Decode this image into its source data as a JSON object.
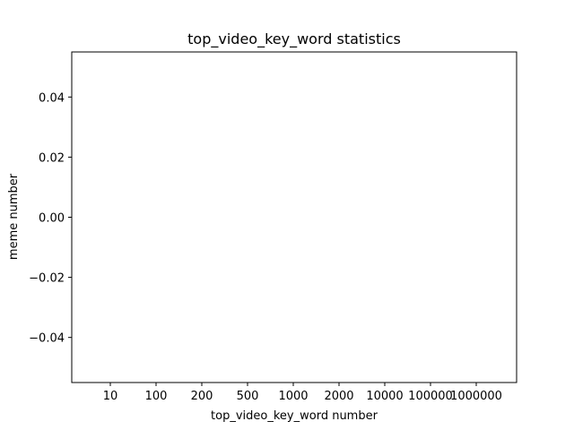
{
  "chart_data": {
    "type": "bar",
    "title": "top_video_key_word statistics",
    "xlabel": "top_video_key_word number",
    "ylabel": "meme number",
    "categories": [
      "10",
      "100",
      "200",
      "500",
      "1000",
      "2000",
      "10000",
      "100000",
      "1000000"
    ],
    "values": [
      0,
      0,
      0,
      0,
      0,
      0,
      0,
      0,
      0
    ],
    "ylim": [
      -0.055,
      0.055
    ],
    "yticks": [
      0.04,
      0.02,
      0.0,
      -0.02,
      -0.04
    ],
    "ytick_labels": [
      "0.04",
      "0.02",
      "0.00",
      "−0.02",
      "−0.04"
    ],
    "grid": false,
    "colors": {
      "axes": "#000000",
      "background": "#ffffff",
      "bar": "#1f77b4"
    }
  }
}
